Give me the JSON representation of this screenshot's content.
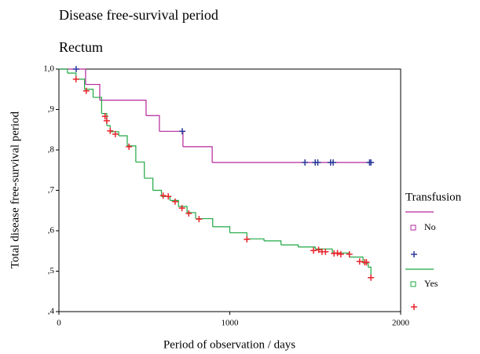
{
  "chart_data": {
    "type": "kaplan-meier",
    "title": "Disease free-survival period",
    "subtitle": "Rectum",
    "x_label": "Period of observation / days",
    "y_label": "Total disease free-survival period",
    "legend_title": "Transfusion",
    "xlim": [
      0,
      2000
    ],
    "xticks": [
      0,
      1000,
      2000
    ],
    "ylim": [
      0.4,
      1.0
    ],
    "yticks": [
      {
        "value": 0.4,
        "label": ",4"
      },
      {
        "value": 0.5,
        "label": ",5"
      },
      {
        "value": 0.6,
        "label": ",6"
      },
      {
        "value": 0.7,
        "label": ",7"
      },
      {
        "value": 0.8,
        "label": ",8"
      },
      {
        "value": 0.9,
        "label": ",9"
      },
      {
        "value": 1.0,
        "label": "1,0"
      }
    ],
    "series": [
      {
        "name": "No",
        "color": "#b5279b",
        "censor_color": "#2b3a9a",
        "x": [
          0,
          156,
          239,
          510,
          588,
          726,
          897,
          1826
        ],
        "values": [
          1.0,
          0.962,
          0.923,
          0.885,
          0.846,
          0.808,
          0.769,
          0.769
        ],
        "censored": {
          "x": [
            101,
            722,
            1440,
            1500,
            1515,
            1590,
            1605,
            1818,
            1826
          ],
          "values": [
            1.0,
            0.846,
            0.769,
            0.769,
            0.769,
            0.769,
            0.769,
            0.769,
            0.769
          ]
        }
      },
      {
        "name": "Yes",
        "color": "#1fa843",
        "censor_color": "#e8242a",
        "x": [
          0,
          50,
          100,
          150,
          200,
          250,
          280,
          300,
          350,
          400,
          450,
          500,
          550,
          600,
          650,
          700,
          750,
          800,
          900,
          1000,
          1100,
          1200,
          1300,
          1400,
          1500,
          1600,
          1700,
          1780,
          1810,
          1826
        ],
        "values": [
          1.0,
          0.99,
          0.975,
          0.95,
          0.93,
          0.89,
          0.86,
          0.845,
          0.835,
          0.81,
          0.77,
          0.73,
          0.7,
          0.685,
          0.675,
          0.66,
          0.645,
          0.63,
          0.61,
          0.595,
          0.58,
          0.575,
          0.565,
          0.56,
          0.555,
          0.545,
          0.535,
          0.52,
          0.51,
          0.484
        ],
        "censored": {
          "x": [
            100,
            160,
            270,
            280,
            300,
            330,
            410,
            610,
            640,
            680,
            720,
            760,
            820,
            1100,
            1490,
            1520,
            1540,
            1560,
            1610,
            1630,
            1650,
            1700,
            1760,
            1790,
            1800,
            1826
          ],
          "values": [
            0.975,
            0.946,
            0.883,
            0.872,
            0.847,
            0.839,
            0.808,
            0.687,
            0.685,
            0.672,
            0.656,
            0.643,
            0.629,
            0.579,
            0.551,
            0.553,
            0.548,
            0.548,
            0.544,
            0.545,
            0.542,
            0.542,
            0.524,
            0.522,
            0.522,
            0.484
          ]
        }
      }
    ]
  }
}
